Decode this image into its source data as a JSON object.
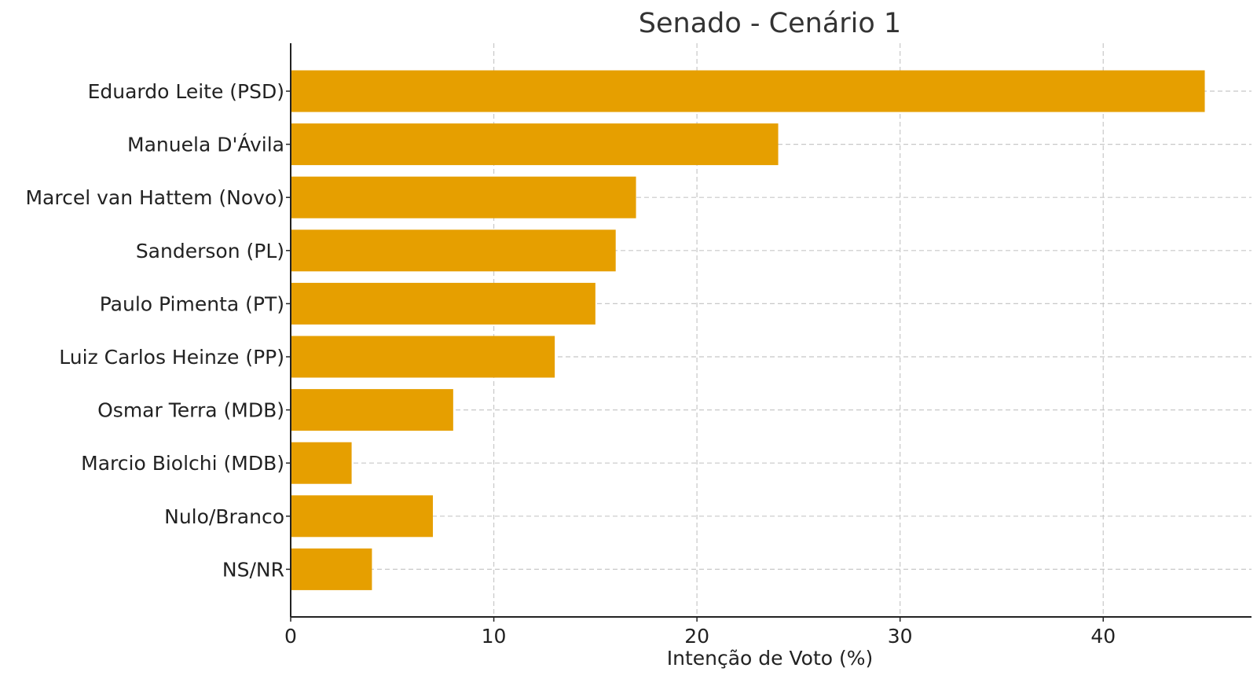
{
  "chart_data": {
    "type": "bar",
    "orientation": "horizontal",
    "title": "Senado - Cenário 1",
    "xlabel": "Intenção de Voto (%)",
    "ylabel": "",
    "categories": [
      "Eduardo Leite (PSD)",
      "Manuela D'Ávila",
      "Marcel van Hattem (Novo)",
      "Sanderson (PL)",
      "Paulo Pimenta (PT)",
      "Luiz Carlos Heinze (PP)",
      "Osmar Terra (MDB)",
      "Marcio Biolchi (MDB)",
      "Nulo/Branco",
      "NS/NR"
    ],
    "values": [
      45,
      24,
      17,
      16,
      15,
      13,
      8,
      3,
      7,
      4
    ],
    "xlim": [
      0,
      47.3
    ],
    "xticks": [
      0,
      10,
      20,
      30,
      40
    ],
    "grid": true,
    "bar_color": "#E69F00"
  }
}
